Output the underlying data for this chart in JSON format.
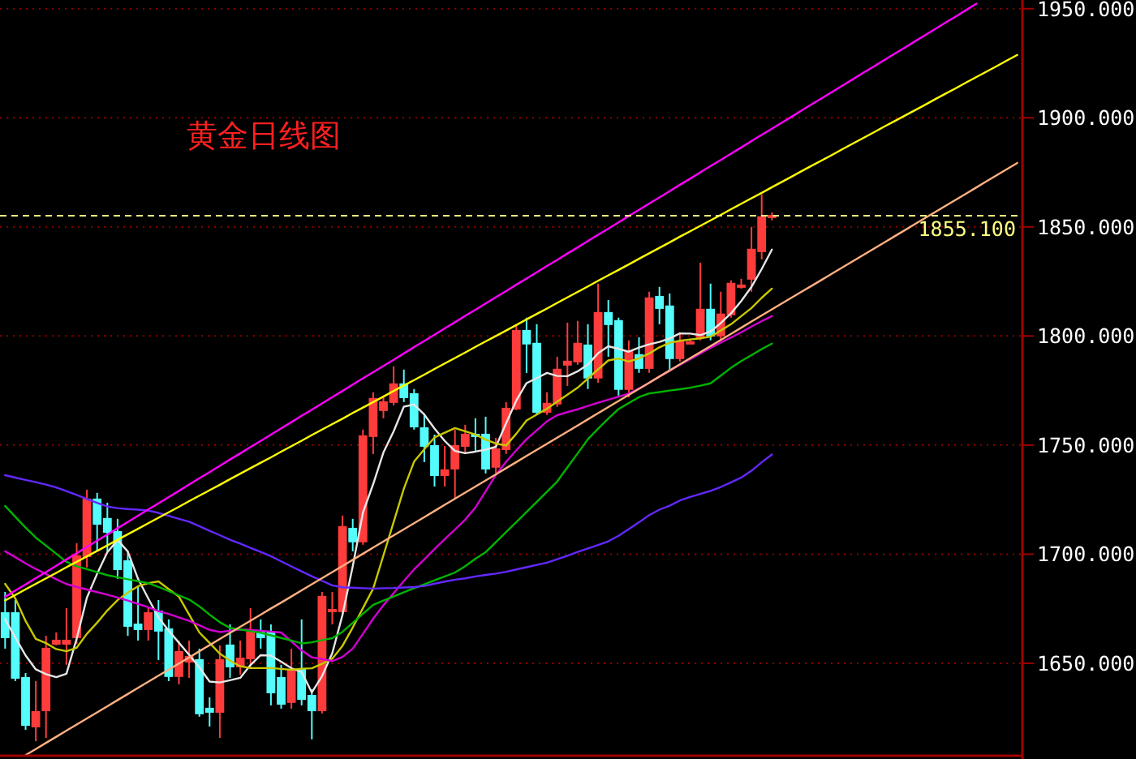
{
  "chart_data": {
    "type": "candlestick",
    "title": "黄金日线图",
    "categories": [
      null,
      null,
      null,
      null,
      null,
      null,
      null,
      null,
      null,
      null,
      null,
      null,
      null,
      null,
      null,
      null,
      null,
      null,
      null,
      null,
      null,
      null,
      null,
      null,
      null,
      null,
      null,
      null,
      null,
      null,
      null,
      null,
      null,
      null,
      null,
      null,
      null,
      null,
      null,
      null,
      null,
      null,
      null,
      null,
      null,
      null,
      null,
      null,
      null,
      null,
      null,
      null,
      null,
      null,
      null,
      null,
      null,
      null,
      null,
      null,
      null,
      null,
      null,
      null,
      null,
      null,
      null,
      null,
      null,
      null,
      null,
      null,
      null,
      null,
      null,
      null,
      null,
      null,
      null,
      null,
      null,
      null,
      null,
      null,
      null,
      null,
      null,
      null,
      null,
      null,
      null,
      null,
      null,
      null,
      null,
      null,
      null,
      null,
      null,
      null
    ],
    "ohlc": [
      [
        1673.0,
        1682.7,
        1656.7,
        1661.9
      ],
      [
        1673.0,
        1679.0,
        1641.8,
        1643.3
      ],
      [
        1643.3,
        1645.5,
        1619.5,
        1621.7
      ],
      [
        1621.0,
        1641.8,
        1614.3,
        1627.7
      ],
      [
        1628.4,
        1662.6,
        1615.8,
        1656.7
      ],
      [
        1658.9,
        1664.1,
        1658.2,
        1660.4
      ],
      [
        1658.9,
        1675.3,
        1649.3,
        1660.4
      ],
      [
        1661.9,
        1705.0,
        1658.9,
        1699.1
      ],
      [
        1699.1,
        1729.6,
        1693.9,
        1725.1
      ],
      [
        1725.1,
        1728.1,
        1701.3,
        1713.9
      ],
      [
        1716.2,
        1723.6,
        1701.3,
        1710.2
      ],
      [
        1710.2,
        1716.2,
        1688.7,
        1693.1
      ],
      [
        1696.8,
        1701.3,
        1662.6,
        1667.1
      ],
      [
        1667.8,
        1684.9,
        1660.4,
        1665.6
      ],
      [
        1665.6,
        1675.3,
        1660.4,
        1673.0
      ],
      [
        1673.8,
        1679.0,
        1651.5,
        1664.9
      ],
      [
        1665.6,
        1670.1,
        1641.8,
        1644.1
      ],
      [
        1644.1,
        1660.4,
        1640.3,
        1655.2
      ],
      [
        1650.7,
        1660.4,
        1643.3,
        1653.0
      ],
      [
        1651.5,
        1656.7,
        1625.5,
        1627.0
      ],
      [
        1629.2,
        1634.4,
        1621.0,
        1627.7
      ],
      [
        1627.7,
        1658.2,
        1615.8,
        1651.5
      ],
      [
        1658.2,
        1667.8,
        1643.3,
        1648.5
      ],
      [
        1648.5,
        1660.4,
        1644.8,
        1652.2
      ],
      [
        1652.2,
        1675.3,
        1647.8,
        1664.1
      ],
      [
        1664.1,
        1670.1,
        1656.7,
        1661.9
      ],
      [
        1664.1,
        1667.8,
        1630.7,
        1636.6
      ],
      [
        1643.3,
        1649.3,
        1629.2,
        1631.4
      ],
      [
        1632.2,
        1656.7,
        1629.2,
        1647.0
      ],
      [
        1647.0,
        1670.1,
        1630.7,
        1633.6
      ],
      [
        1635.1,
        1638.1,
        1615.1,
        1628.4
      ],
      [
        1628.4,
        1682.7,
        1627.0,
        1680.5
      ],
      [
        1673.8,
        1682.7,
        1667.8,
        1674.5
      ],
      [
        1673.8,
        1717.7,
        1671.6,
        1712.5
      ],
      [
        1711.7,
        1716.2,
        1701.3,
        1705.8
      ],
      [
        1705.8,
        1757.1,
        1704.3,
        1754.1
      ],
      [
        1754.1,
        1774.2,
        1745.9,
        1771.2
      ],
      [
        1766.0,
        1772.7,
        1762.3,
        1769.7
      ],
      [
        1769.7,
        1786.1,
        1768.2,
        1777.9
      ],
      [
        1777.9,
        1784.6,
        1769.7,
        1771.9
      ],
      [
        1773.4,
        1775.7,
        1757.1,
        1758.5
      ],
      [
        1757.8,
        1764.5,
        1742.2,
        1749.6
      ],
      [
        1749.6,
        1754.8,
        1731.0,
        1736.2
      ],
      [
        1736.2,
        1749.6,
        1731.0,
        1738.5
      ],
      [
        1739.2,
        1757.1,
        1725.8,
        1749.6
      ],
      [
        1749.6,
        1759.3,
        1745.9,
        1754.8
      ],
      [
        1754.8,
        1762.3,
        1747.4,
        1754.1
      ],
      [
        1754.8,
        1763.0,
        1737.0,
        1739.2
      ],
      [
        1740.0,
        1753.3,
        1737.0,
        1748.1
      ],
      [
        1748.1,
        1769.7,
        1745.9,
        1766.7
      ],
      [
        1766.7,
        1805.4,
        1766.0,
        1802.4
      ],
      [
        1802.4,
        1808.4,
        1783.1,
        1796.5
      ],
      [
        1796.5,
        1805.4,
        1763.8,
        1765.2
      ],
      [
        1765.2,
        1774.2,
        1763.8,
        1769.0
      ],
      [
        1769.0,
        1790.5,
        1767.5,
        1784.6
      ],
      [
        1786.8,
        1806.1,
        1777.1,
        1788.3
      ],
      [
        1788.3,
        1806.9,
        1786.8,
        1796.5
      ],
      [
        1795.7,
        1805.4,
        1775.7,
        1780.9
      ],
      [
        1780.9,
        1824.0,
        1778.6,
        1810.6
      ],
      [
        1810.6,
        1816.5,
        1790.5,
        1805.4
      ],
      [
        1806.9,
        1808.4,
        1772.7,
        1775.7
      ],
      [
        1775.7,
        1798.0,
        1771.9,
        1792.8
      ],
      [
        1791.3,
        1799.4,
        1783.1,
        1785.3
      ],
      [
        1785.3,
        1820.3,
        1783.1,
        1817.3
      ],
      [
        1818.0,
        1822.5,
        1805.4,
        1812.8
      ],
      [
        1813.6,
        1819.5,
        1784.6,
        1789.8
      ],
      [
        1789.8,
        1801.7,
        1788.3,
        1797.2
      ],
      [
        1797.2,
        1798.7,
        1796.5,
        1797.2
      ],
      [
        1799.4,
        1833.6,
        1798.0,
        1812.1
      ],
      [
        1812.1,
        1824.0,
        1798.0,
        1800.2
      ],
      [
        1800.2,
        1820.3,
        1798.0,
        1809.9
      ],
      [
        1809.9,
        1825.5,
        1808.4,
        1824.0
      ],
      [
        1823.2,
        1826.2,
        1821.7,
        1823.2
      ],
      [
        1826.2,
        1850.0,
        1820.3,
        1839.6
      ],
      [
        1838.8,
        1864.9,
        1835.1,
        1854.5
      ],
      [
        1854.5,
        1856.7,
        1853.0,
        1855.1
      ],
      null,
      null,
      null,
      null,
      null,
      null,
      null,
      null,
      null,
      null,
      null,
      null,
      null,
      null,
      null,
      null,
      null,
      null,
      null,
      null,
      null,
      null,
      null,
      null
    ],
    "colors": [
      "#54fcfc",
      "#54fcfc",
      "#54fcfc",
      "#ff3c3c",
      "#ff3c3c",
      "#ff3c3c",
      "#ff3c3c",
      "#ff3c3c",
      "#ff3c3c",
      "#54fcfc",
      "#54fcfc",
      "#54fcfc",
      "#54fcfc",
      "#54fcfc",
      "#ff3c3c",
      "#54fcfc",
      "#54fcfc",
      "#ff3c3c",
      "#ff3c3c",
      "#54fcfc",
      "#54fcfc",
      "#ff3c3c",
      "#54fcfc",
      "#ff3c3c",
      "#ff3c3c",
      "#54fcfc",
      "#54fcfc",
      "#54fcfc",
      "#ff3c3c",
      "#54fcfc",
      "#54fcfc",
      "#ff3c3c",
      "#ff3c3c",
      "#ff3c3c",
      "#54fcfc",
      "#ff3c3c",
      "#ff3c3c",
      "#ff3c3c",
      "#ff3c3c",
      "#54fcfc",
      "#54fcfc",
      "#54fcfc",
      "#54fcfc",
      "#ff3c3c",
      "#ff3c3c",
      "#ff3c3c",
      "#54fcfc",
      "#54fcfc",
      "#ff3c3c",
      "#ff3c3c",
      "#ff3c3c",
      "#54fcfc",
      "#54fcfc",
      "#ff3c3c",
      "#ff3c3c",
      "#ff3c3c",
      "#ff3c3c",
      "#54fcfc",
      "#ff3c3c",
      "#54fcfc",
      "#54fcfc",
      "#ff3c3c",
      "#54fcfc",
      "#ff3c3c",
      "#54fcfc",
      "#54fcfc",
      "#ff3c3c",
      "#ff3c3c",
      "#ff3c3c",
      "#54fcfc",
      "#ff3c3c",
      "#ff3c3c",
      "#ff3c3c",
      "#ff3c3c",
      "#ff3c3c",
      "#ff3c3c",
      null,
      null,
      null,
      null,
      null,
      null,
      null,
      null,
      null,
      null,
      null,
      null,
      null,
      null,
      null,
      null,
      null,
      null,
      null,
      null,
      null,
      null,
      null,
      null
    ],
    "series": [
      {
        "type": "line",
        "color": "#e6e6e6",
        "values": [
          1670.1,
          1661.8,
          1653.6,
          1647.2,
          1645.0,
          1643.6,
          1645.2,
          1661.3,
          1680.1,
          1691.0,
          1700.9,
          1706.5,
          1701.2,
          1688.7,
          1679.7,
          1671.0,
          1664.9,
          1659.4,
          1653.9,
          1648.1,
          1641.6,
          1641.2,
          1642.2,
          1643.3,
          1649.2,
          1653.7,
          1653.5,
          1650.7,
          1647.7,
          1646.0,
          1636.6,
          1644.1,
          1654.6,
          1672.2,
          1694.4,
          1719.1,
          1732.1,
          1746.6,
          1756.3,
          1767.6,
          1768.6,
          1764.0,
          1757.6,
          1751.9,
          1747.3,
          1746.3,
          1747.0,
          1747.9,
          1749.2,
          1760.0,
          1770.4,
          1778.4,
          1780.7,
          1783.1,
          1781.7,
          1781.6,
          1783.8,
          1786.9,
          1792.1,
          1795.3,
          1794.1,
          1792.8,
          1794.7,
          1796.2,
          1797.3,
          1798.9,
          1801.2,
          1801.1,
          1800.4,
          1802.1,
          1805.9,
          1810.4,
          1816.0,
          1822.5,
          1830.7,
          1839.6,
          null,
          null,
          null,
          null,
          null,
          null,
          null,
          null,
          null,
          null,
          null,
          null,
          null,
          null,
          null,
          null,
          null,
          null,
          null,
          null,
          null,
          null,
          null,
          null
        ]
      },
      {
        "type": "line",
        "color": "#c8c800",
        "values": [
          1686.4,
          1679.7,
          1669.4,
          1661.2,
          1659.2,
          1656.5,
          1655.5,
          1657.1,
          1663.5,
          1668.6,
          1674.2,
          1678.9,
          1682.4,
          1685.3,
          1686.7,
          1687.5,
          1684.0,
          1680.5,
          1672.3,
          1664.1,
          1659.3,
          1654.4,
          1651.2,
          1648.6,
          1647.8,
          1647.8,
          1647.8,
          1647.4,
          1647.0,
          1647.5,
          1647.7,
          1649.7,
          1652.1,
          1658.0,
          1666.4,
          1675.3,
          1684.2,
          1699.4,
          1714.7,
          1730.0,
          1742.4,
          1748.1,
          1753.5,
          1755.7,
          1757.8,
          1756.3,
          1754.8,
          1752.5,
          1750.7,
          1749.8,
          1755.2,
          1761.3,
          1764.0,
          1766.7,
          1769.9,
          1773.1,
          1776.3,
          1780.5,
          1784.7,
          1788.8,
          1789.7,
          1788.3,
          1789.8,
          1792.0,
          1794.8,
          1796.9,
          1797.8,
          1798.4,
          1798.9,
          1799.7,
          1802.5,
          1805.4,
          1809.1,
          1812.8,
          1817.5,
          1821.7,
          null,
          null,
          null,
          null,
          null,
          null,
          null,
          null,
          null,
          null,
          null,
          null,
          null,
          null,
          null,
          null,
          null,
          null,
          null,
          null,
          null,
          null,
          null,
          null
        ]
      },
      {
        "type": "line",
        "color": "#d200d2",
        "values": [
          1701.3,
          1698.6,
          1695.8,
          1693.2,
          1690.9,
          1688.5,
          1686.3,
          1685.0,
          1683.8,
          1682.6,
          1681.4,
          1680.1,
          1678.7,
          1677.2,
          1675.7,
          1673.9,
          1672.6,
          1671.0,
          1669.4,
          1667.4,
          1665.3,
          1664.3,
          1664.9,
          1665.5,
          1665.3,
          1664.9,
          1664.5,
          1664.1,
          1660.0,
          1655.9,
          1652.7,
          1651.9,
          1651.0,
          1652.9,
          1656.7,
          1663.5,
          1670.4,
          1676.6,
          1682.1,
          1687.7,
          1693.0,
          1697.6,
          1702.3,
          1706.9,
          1711.3,
          1715.8,
          1721.4,
          1728.8,
          1736.3,
          1742.3,
          1747.6,
          1752.7,
          1756.8,
          1760.9,
          1763.7,
          1765.1,
          1766.4,
          1767.9,
          1769.4,
          1770.8,
          1772.2,
          1773.6,
          1775.9,
          1778.6,
          1781.4,
          1784.1,
          1786.8,
          1789.4,
          1792.0,
          1794.6,
          1797.0,
          1799.3,
          1801.7,
          1804.3,
          1806.8,
          1809.1,
          null,
          null,
          null,
          null,
          null,
          null,
          null,
          null,
          null,
          null,
          null,
          null,
          null,
          null,
          null,
          null,
          null,
          null,
          null,
          null,
          null,
          null,
          null,
          null
        ]
      },
      {
        "type": "line",
        "color": "#00b400",
        "values": [
          1722.1,
          1717.1,
          1712.2,
          1707.6,
          1703.9,
          1700.2,
          1696.5,
          1694.4,
          1693.1,
          1691.7,
          1690.4,
          1689.4,
          1688.5,
          1687.6,
          1686.7,
          1685.0,
          1683.1,
          1681.1,
          1679.2,
          1676.1,
          1672.3,
          1668.8,
          1666.2,
          1665.5,
          1664.7,
          1664.0,
          1662.8,
          1661.6,
          1660.4,
          1659.1,
          1659.6,
          1660.6,
          1661.5,
          1664.4,
          1668.5,
          1672.7,
          1676.8,
          1678.7,
          1680.6,
          1682.5,
          1684.4,
          1686.2,
          1688.0,
          1689.8,
          1691.6,
          1694.5,
          1697.9,
          1700.9,
          1705.5,
          1710.1,
          1714.7,
          1719.3,
          1724.0,
          1728.6,
          1733.3,
          1739.8,
          1746.2,
          1752.7,
          1757.5,
          1762.2,
          1766.5,
          1769.3,
          1772.0,
          1773.7,
          1774.3,
          1775.0,
          1775.6,
          1776.3,
          1777.2,
          1778.3,
          1781.8,
          1785.4,
          1788.5,
          1791.2,
          1794.0,
          1796.5,
          null,
          null,
          null,
          null,
          null,
          null,
          null,
          null,
          null,
          null,
          null,
          null,
          null,
          null,
          null,
          null,
          null,
          null,
          null,
          null,
          null,
          null,
          null,
          null
        ]
      },
      {
        "type": "line",
        "color": "#6428ff",
        "values": [
          1736.2,
          1735.1,
          1734.0,
          1733.0,
          1731.9,
          1730.6,
          1728.9,
          1727.1,
          1725.3,
          1723.5,
          1721.8,
          1721.1,
          1720.7,
          1720.4,
          1720.0,
          1718.9,
          1717.6,
          1716.2,
          1714.9,
          1712.8,
          1710.7,
          1708.7,
          1706.6,
          1704.8,
          1702.9,
          1701.0,
          1699.1,
          1696.7,
          1694.4,
          1692.1,
          1689.9,
          1687.8,
          1685.7,
          1684.8,
          1684.6,
          1684.4,
          1684.2,
          1684.4,
          1684.5,
          1684.7,
          1684.9,
          1685.4,
          1686.5,
          1687.4,
          1688.3,
          1688.9,
          1689.8,
          1690.5,
          1691.1,
          1691.9,
          1693.0,
          1694.0,
          1695.1,
          1696.1,
          1697.7,
          1699.3,
          1701.0,
          1702.6,
          1704.2,
          1705.9,
          1708.4,
          1711.5,
          1714.6,
          1717.9,
          1720.4,
          1722.2,
          1724.6,
          1726.2,
          1727.6,
          1729.0,
          1730.8,
          1732.9,
          1735.1,
          1738.2,
          1742.1,
          1745.7,
          null,
          null,
          null,
          null,
          null,
          null,
          null,
          null,
          null,
          null,
          null,
          null,
          null,
          null,
          null,
          null,
          null,
          null,
          null,
          null,
          null,
          null,
          null,
          null
        ]
      },
      {
        "type": "line",
        "color": "#ff00ff",
        "values": [
          1680.4,
          1683.3,
          1686.1,
          1689.0,
          1691.8,
          1694.7,
          1697.6,
          1700.4,
          1703.3,
          1706.2,
          1709.0,
          1711.9,
          1714.7,
          1717.6,
          1720.5,
          1723.3,
          1726.2,
          1729.0,
          1731.9,
          1734.8,
          1737.6,
          1740.5,
          1743.4,
          1746.2,
          1749.1,
          1751.9,
          1754.8,
          1757.7,
          1760.5,
          1763.4,
          1766.2,
          1769.1,
          1772.0,
          1774.8,
          1777.7,
          1780.6,
          1783.4,
          1786.3,
          1789.1,
          1792.0,
          1794.9,
          1797.7,
          1800.6,
          1803.5,
          1806.3,
          1809.2,
          1812.0,
          1814.9,
          1817.8,
          1820.6,
          1823.5,
          1826.3,
          1829.2,
          1832.1,
          1834.9,
          1837.8,
          1840.6,
          1843.5,
          1846.4,
          1849.2,
          1852.1,
          1855.0,
          1857.8,
          1860.7,
          1863.5,
          1866.4,
          1869.3,
          1872.1,
          1875.0,
          1877.9,
          1880.7,
          1883.6,
          1886.4,
          1889.3,
          1892.2,
          1895.0,
          1897.9,
          1900.7,
          1903.6,
          1906.5,
          1909.3,
          1912.2,
          1915.1,
          1917.9,
          1920.8,
          1923.6,
          1926.5,
          1929.4,
          1932.2,
          1935.1,
          1937.9,
          1940.8,
          1943.7,
          1946.5,
          1949.4,
          1952.3,
          null,
          null,
          null,
          null
        ]
      },
      {
        "type": "line",
        "color": "#ffff00",
        "values": [
          1678.8,
          1681.3,
          1683.9,
          1686.4,
          1688.9,
          1691.4,
          1694.0,
          1696.5,
          1699.0,
          1701.5,
          1704.0,
          1706.6,
          1709.1,
          1711.6,
          1714.2,
          1716.7,
          1719.2,
          1721.7,
          1724.3,
          1726.8,
          1729.3,
          1731.8,
          1734.4,
          1736.9,
          1739.4,
          1741.9,
          1744.4,
          1747.0,
          1749.5,
          1752.0,
          1754.6,
          1757.1,
          1759.6,
          1762.1,
          1764.7,
          1767.2,
          1769.7,
          1772.2,
          1774.8,
          1777.3,
          1779.8,
          1782.3,
          1784.9,
          1787.4,
          1789.9,
          1792.4,
          1795.0,
          1797.5,
          1800.0,
          1802.5,
          1805.0,
          1807.6,
          1810.1,
          1812.6,
          1815.2,
          1817.7,
          1820.2,
          1822.7,
          1825.3,
          1827.8,
          1830.3,
          1832.8,
          1835.4,
          1837.9,
          1840.4,
          1842.9,
          1845.5,
          1848.0,
          1850.5,
          1853.0,
          1855.5,
          1858.1,
          1860.6,
          1863.1,
          1865.6,
          1868.2,
          1870.7,
          1873.2,
          1875.8,
          1878.3,
          1880.8,
          1883.3,
          1885.9,
          1888.4,
          1890.9,
          1893.4,
          1896.0,
          1898.5,
          1901.0,
          1903.5,
          1906.0,
          1908.6,
          1911.1,
          1913.6,
          1916.2,
          1918.7,
          1921.2,
          1923.7,
          1926.3,
          1928.8
        ]
      },
      {
        "type": "line",
        "color": "#ffb080",
        "values": [
          null,
          null,
          1607.9,
          1610.7,
          1613.5,
          1616.3,
          1619.1,
          1621.9,
          1624.7,
          1627.5,
          1630.3,
          1633.1,
          1635.9,
          1638.7,
          1641.5,
          1644.3,
          1647.1,
          1649.9,
          1652.7,
          1655.5,
          1658.3,
          1661.1,
          1663.9,
          1666.7,
          1669.5,
          1672.3,
          1675.1,
          1677.8,
          1680.6,
          1683.4,
          1686.2,
          1689.0,
          1691.8,
          1694.6,
          1697.4,
          1700.2,
          1703.0,
          1705.8,
          1708.6,
          1711.4,
          1714.2,
          1717.0,
          1719.8,
          1722.6,
          1725.4,
          1728.2,
          1731.0,
          1733.8,
          1736.6,
          1739.4,
          1742.2,
          1745.0,
          1747.8,
          1750.6,
          1753.4,
          1756.2,
          1759.0,
          1761.8,
          1764.6,
          1767.4,
          1770.2,
          1773.0,
          1775.8,
          1778.6,
          1781.4,
          1784.2,
          1787.0,
          1789.8,
          1792.6,
          1795.4,
          1798.2,
          1801.0,
          1803.8,
          1806.6,
          1809.4,
          1812.2,
          1815.0,
          1817.8,
          1820.6,
          1823.3,
          1826.1,
          1828.9,
          1831.7,
          1834.5,
          1837.3,
          1840.1,
          1842.9,
          1845.7,
          1848.5,
          1851.3,
          1854.1,
          1856.9,
          1859.7,
          1862.5,
          1865.3,
          1868.1,
          1870.9,
          1873.7,
          1876.5,
          1879.3
        ]
      }
    ],
    "ylim": [
      1607.6,
      1954.0
    ],
    "yticks": [
      {
        "value": 1650,
        "label": "1650.000"
      },
      {
        "value": 1700,
        "label": "1700.000"
      },
      {
        "value": 1750,
        "label": "1750.000"
      },
      {
        "value": 1800,
        "label": "1800.000"
      },
      {
        "value": 1850,
        "label": "1850.000"
      },
      {
        "value": 1900,
        "label": "1900.000"
      },
      {
        "value": 1950,
        "label": "1950.000"
      }
    ],
    "ref_lines": [
      {
        "axis": "y",
        "value": 1855.1,
        "label": "1855.100",
        "color": "#ffff80",
        "line_style": "dashed"
      }
    ],
    "grid": "y",
    "tick_labels": "y"
  }
}
